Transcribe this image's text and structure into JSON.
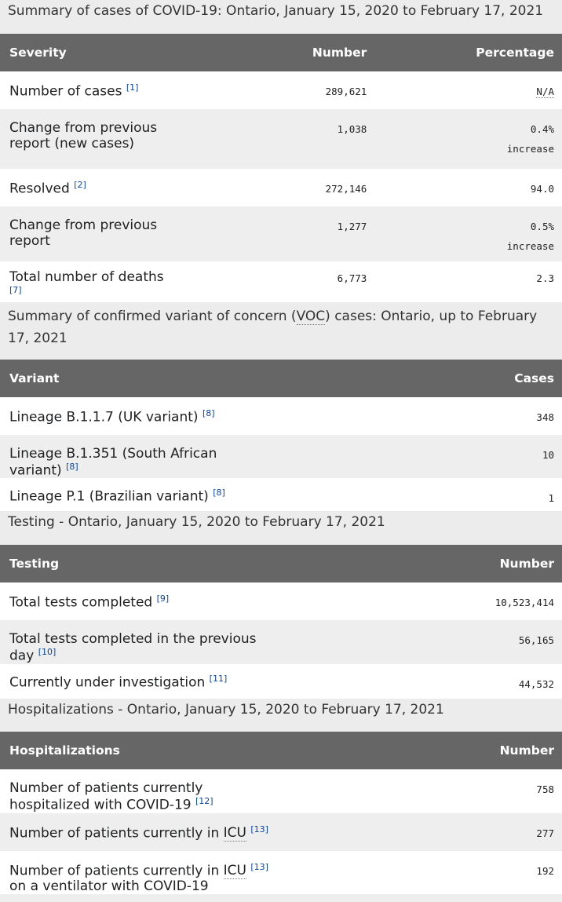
{
  "severity": {
    "caption": "Summary of cases of COVID-19: Ontario, January 15, 2020 to February 17, 2021",
    "headers": [
      "Severity",
      "Number",
      "Percentage"
    ],
    "rows": [
      {
        "label": "Number of cases",
        "ref": "[1]",
        "number": "289,621",
        "pct": "N/A",
        "pct_sub": ""
      },
      {
        "label": "Change from previous report (new cases)",
        "ref": "",
        "number": "1,038",
        "pct": "0.4%",
        "pct_sub": "increase"
      },
      {
        "label": "Resolved",
        "ref": "[2]",
        "number": "272,146",
        "pct": "94.0",
        "pct_sub": ""
      },
      {
        "label": "Change from previous report",
        "ref": "",
        "number": "1,277",
        "pct": "0.5%",
        "pct_sub": "increase"
      },
      {
        "label": "Total number of deaths",
        "ref": "[7]",
        "number": "6,773",
        "pct": "2.3",
        "pct_sub": ""
      }
    ]
  },
  "variants": {
    "caption_pre": "Summary of confirmed variant of concern (",
    "caption_abbr": "VOC",
    "caption_post": ") cases: Ontario, up to February 17, 2021",
    "headers": [
      "Variant",
      "Cases"
    ],
    "rows": [
      {
        "label": "Lineage B.1.1.7 (UK variant)",
        "ref": "[8]",
        "cases": "348"
      },
      {
        "label": "Lineage B.1.351 (South African variant)",
        "ref": "[8]",
        "cases": "10"
      },
      {
        "label": "Lineage P.1 (Brazilian variant)",
        "ref": "[8]",
        "cases": "1"
      }
    ]
  },
  "testing": {
    "caption": "Testing - Ontario, January 15, 2020 to February 17, 2021",
    "headers": [
      "Testing",
      "Number"
    ],
    "rows": [
      {
        "label": "Total tests completed",
        "ref": "[9]",
        "number": "10,523,414"
      },
      {
        "label": "Total tests completed in the previous day",
        "ref": "[10]",
        "number": "56,165"
      },
      {
        "label": "Currently under investigation",
        "ref": "[11]",
        "number": "44,532"
      }
    ]
  },
  "hosp": {
    "caption": "Hospitalizations - Ontario, January 15, 2020 to February 17, 2021",
    "headers": [
      "Hospitalizations",
      "Number"
    ],
    "rows": [
      {
        "pre": "Number of patients currently hospitalized with COVID-19",
        "abbr": "",
        "ref": "[12]",
        "post": "",
        "number": "758"
      },
      {
        "pre": "Number of patients currently in ",
        "abbr": "ICU",
        "ref": "[13]",
        "post": "",
        "number": "277"
      },
      {
        "pre": "Number of patients currently in ",
        "abbr": "ICU",
        "ref": "[13]",
        "post": " on a ventilator with COVID-19",
        "number": "192"
      }
    ]
  }
}
